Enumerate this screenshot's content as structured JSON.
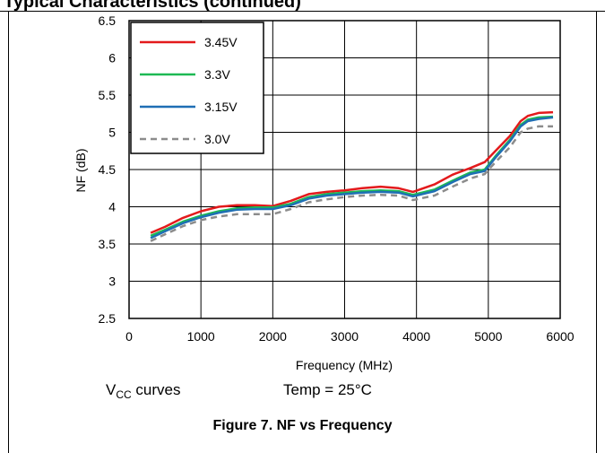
{
  "header": {
    "title": "Typical Characteristics (continued)"
  },
  "chart_data": {
    "type": "line",
    "title": "",
    "xlabel": "Frequency (MHz)",
    "ylabel": "NF (dB)",
    "xlim": [
      0,
      6000
    ],
    "ylim": [
      2.5,
      6.5
    ],
    "xticks": [
      0,
      1000,
      2000,
      3000,
      4000,
      5000,
      6000
    ],
    "yticks": [
      2.5,
      3,
      3.5,
      4,
      4.5,
      5,
      5.5,
      6,
      6.5
    ],
    "grid": true,
    "legend_position": "top-left",
    "series": [
      {
        "name": "3.45V",
        "color": "#e31a1c",
        "dash": "solid",
        "x": [
          300,
          500,
          750,
          1000,
          1250,
          1500,
          1750,
          2000,
          2250,
          2500,
          2750,
          3000,
          3250,
          3500,
          3750,
          3950,
          4250,
          4500,
          4750,
          4950,
          5100,
          5300,
          5450,
          5550,
          5700,
          5900
        ],
        "y": [
          3.65,
          3.73,
          3.85,
          3.94,
          4.0,
          4.02,
          4.02,
          4.01,
          4.08,
          4.17,
          4.2,
          4.22,
          4.25,
          4.27,
          4.25,
          4.2,
          4.3,
          4.43,
          4.52,
          4.6,
          4.75,
          4.95,
          5.15,
          5.22,
          5.26,
          5.27
        ]
      },
      {
        "name": "3.3V",
        "color": "#1db954",
        "dash": "solid",
        "x": [
          300,
          500,
          750,
          1000,
          1250,
          1500,
          1750,
          2000,
          2250,
          2500,
          2750,
          3000,
          3250,
          3500,
          3750,
          3950,
          4250,
          4500,
          4750,
          4950,
          5100,
          5300,
          5450,
          5550,
          5700,
          5900
        ],
        "y": [
          3.61,
          3.69,
          3.8,
          3.88,
          3.94,
          3.98,
          3.99,
          3.99,
          4.04,
          4.13,
          4.17,
          4.19,
          4.21,
          4.22,
          4.21,
          4.16,
          4.23,
          4.35,
          4.46,
          4.5,
          4.68,
          4.9,
          5.1,
          5.17,
          5.2,
          5.21
        ]
      },
      {
        "name": "3.15V",
        "color": "#1f6fb4",
        "dash": "solid",
        "x": [
          300,
          500,
          750,
          1000,
          1250,
          1500,
          1750,
          2000,
          2250,
          2500,
          2750,
          3000,
          3250,
          3500,
          3750,
          3950,
          4250,
          4500,
          4750,
          4950,
          5100,
          5300,
          5450,
          5550,
          5700,
          5900
        ],
        "y": [
          3.58,
          3.67,
          3.78,
          3.86,
          3.92,
          3.96,
          3.97,
          3.97,
          4.02,
          4.11,
          4.15,
          4.17,
          4.19,
          4.2,
          4.19,
          4.14,
          4.21,
          4.33,
          4.44,
          4.48,
          4.66,
          4.88,
          5.08,
          5.15,
          5.18,
          5.2
        ]
      },
      {
        "name": "3.0V",
        "color": "#8c8c8c",
        "dash": "dashed",
        "x": [
          300,
          500,
          750,
          1000,
          1250,
          1500,
          1750,
          2000,
          2250,
          2500,
          2750,
          3000,
          3250,
          3500,
          3750,
          3950,
          4250,
          4500,
          4750,
          4950,
          5100,
          5300,
          5450,
          5550,
          5700,
          5900
        ],
        "y": [
          3.54,
          3.63,
          3.74,
          3.82,
          3.87,
          3.9,
          3.9,
          3.9,
          3.97,
          4.06,
          4.1,
          4.13,
          4.15,
          4.16,
          4.15,
          4.09,
          4.15,
          4.27,
          4.38,
          4.44,
          4.6,
          4.8,
          5.0,
          5.05,
          5.08,
          5.08
        ]
      }
    ]
  },
  "footer": {
    "curves_label_main": "V",
    "curves_label_sub": "CC",
    "curves_label_rest": " curves",
    "temp_label": "Temp = 25°C"
  },
  "caption": "Figure 7.  NF vs Frequency"
}
